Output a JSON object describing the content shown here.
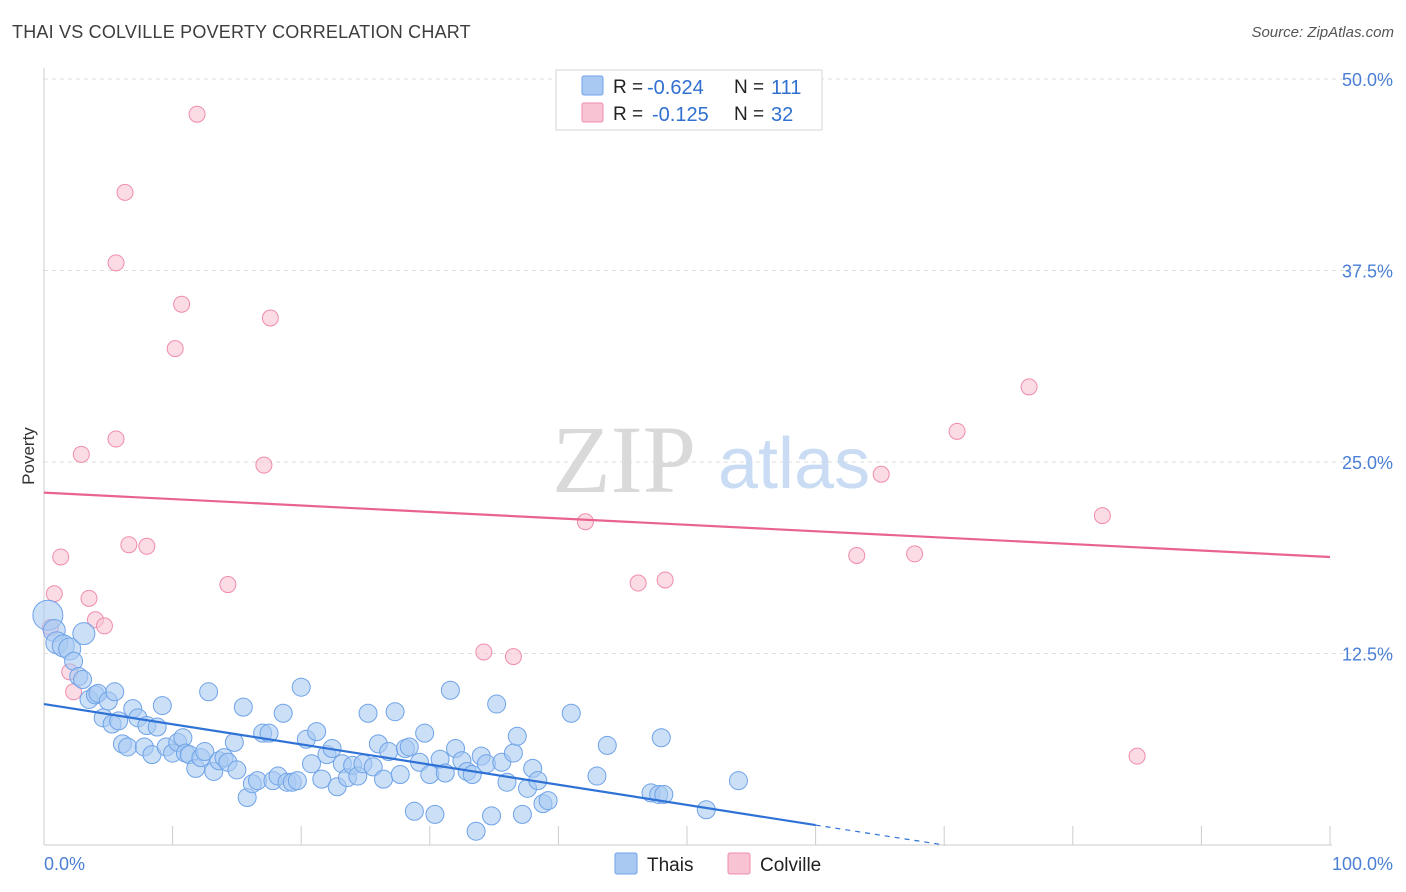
{
  "header": {
    "title": "THAI VS COLVILLE POVERTY CORRELATION CHART",
    "source": "Source: ZipAtlas.com"
  },
  "watermark": {
    "zip": "ZIP",
    "atlas": "atlas"
  },
  "legend": {
    "rows": [
      {
        "r_label": "R =",
        "r_value": "-0.624",
        "n_label": "N =",
        "n_value": "111",
        "color": "#6fa3e8"
      },
      {
        "r_label": "R =",
        "r_value": "-0.125",
        "n_label": "N =",
        "n_value": "32",
        "color": "#f08cab"
      }
    ]
  },
  "bottom_legend": {
    "series_a": "Thais",
    "series_b": "Colville"
  },
  "chart_data": {
    "type": "scatter",
    "title": "THAI VS COLVILLE POVERTY CORRELATION CHART",
    "xlabel": "",
    "ylabel": "Poverty",
    "xlim": [
      0,
      100
    ],
    "ylim": [
      0,
      50
    ],
    "x_tick_labels": [
      "0.0%",
      "100.0%"
    ],
    "y_ticks": [
      12.5,
      25.0,
      37.5,
      50.0
    ],
    "y_tick_labels": [
      "12.5%",
      "25.0%",
      "37.5%",
      "50.0%"
    ],
    "grid": true,
    "colors": {
      "thais_fill": "#a9c9f2",
      "thais_stroke": "#6fa3e8",
      "thais_line": "#2f72d6",
      "colville_fill": "#f8c4d4",
      "colville_stroke": "#f08cab",
      "colville_line": "#e8648e"
    },
    "series": [
      {
        "name": "Thais",
        "r": -0.624,
        "n": 111,
        "trend": {
          "x0": 0,
          "y0": 9.2,
          "x1": 60,
          "y1": 1.3,
          "dash_to_x": 70,
          "dash_to_y": 0.0
        },
        "points": [
          [
            0.3,
            15.0
          ],
          [
            0.8,
            14.0
          ],
          [
            1.0,
            13.2
          ],
          [
            1.5,
            13.0
          ],
          [
            2.0,
            12.8
          ],
          [
            2.3,
            12.0
          ],
          [
            2.7,
            11.0
          ],
          [
            3.0,
            10.8
          ],
          [
            3.1,
            13.8
          ],
          [
            3.5,
            9.5
          ],
          [
            4.0,
            9.8
          ],
          [
            4.2,
            9.9
          ],
          [
            4.6,
            8.3
          ],
          [
            5.0,
            9.4
          ],
          [
            5.3,
            7.9
          ],
          [
            5.5,
            10.0
          ],
          [
            5.8,
            8.1
          ],
          [
            6.1,
            6.6
          ],
          [
            6.5,
            6.4
          ],
          [
            6.9,
            8.9
          ],
          [
            7.3,
            8.3
          ],
          [
            7.8,
            6.4
          ],
          [
            8.0,
            7.8
          ],
          [
            8.4,
            5.9
          ],
          [
            8.8,
            7.7
          ],
          [
            9.2,
            9.1
          ],
          [
            9.5,
            6.4
          ],
          [
            10.0,
            6.0
          ],
          [
            10.4,
            6.7
          ],
          [
            10.8,
            7.0
          ],
          [
            11.0,
            6.0
          ],
          [
            11.3,
            5.9
          ],
          [
            11.8,
            5.0
          ],
          [
            12.2,
            5.7
          ],
          [
            12.5,
            6.1
          ],
          [
            12.8,
            10.0
          ],
          [
            13.2,
            4.8
          ],
          [
            13.6,
            5.5
          ],
          [
            14.0,
            5.7
          ],
          [
            14.3,
            5.4
          ],
          [
            14.8,
            6.7
          ],
          [
            15.0,
            4.9
          ],
          [
            15.5,
            9.0
          ],
          [
            15.8,
            3.1
          ],
          [
            16.2,
            4.0
          ],
          [
            16.6,
            4.2
          ],
          [
            17.0,
            7.3
          ],
          [
            17.5,
            7.3
          ],
          [
            17.8,
            4.2
          ],
          [
            18.2,
            4.5
          ],
          [
            18.6,
            8.6
          ],
          [
            18.9,
            4.1
          ],
          [
            19.3,
            4.1
          ],
          [
            19.7,
            4.2
          ],
          [
            20.0,
            10.3
          ],
          [
            20.4,
            6.9
          ],
          [
            20.8,
            5.3
          ],
          [
            21.2,
            7.4
          ],
          [
            21.6,
            4.3
          ],
          [
            22.0,
            5.9
          ],
          [
            22.4,
            6.3
          ],
          [
            22.8,
            3.8
          ],
          [
            23.2,
            5.3
          ],
          [
            23.6,
            4.4
          ],
          [
            24.0,
            5.2
          ],
          [
            24.4,
            4.5
          ],
          [
            24.8,
            5.3
          ],
          [
            25.2,
            8.6
          ],
          [
            25.6,
            5.1
          ],
          [
            26.0,
            6.6
          ],
          [
            26.4,
            4.3
          ],
          [
            26.8,
            6.1
          ],
          [
            27.3,
            8.7
          ],
          [
            27.7,
            4.6
          ],
          [
            28.1,
            6.3
          ],
          [
            28.4,
            6.4
          ],
          [
            28.8,
            2.2
          ],
          [
            29.2,
            5.4
          ],
          [
            29.6,
            7.3
          ],
          [
            30.0,
            4.6
          ],
          [
            30.4,
            2.0
          ],
          [
            30.8,
            5.6
          ],
          [
            31.2,
            4.7
          ],
          [
            31.6,
            10.1
          ],
          [
            32.0,
            6.3
          ],
          [
            32.5,
            5.5
          ],
          [
            32.9,
            4.8
          ],
          [
            33.3,
            4.6
          ],
          [
            33.6,
            0.9
          ],
          [
            34.0,
            5.8
          ],
          [
            34.4,
            5.3
          ],
          [
            34.8,
            1.9
          ],
          [
            35.2,
            9.2
          ],
          [
            35.6,
            5.4
          ],
          [
            36.0,
            4.1
          ],
          [
            36.5,
            6.0
          ],
          [
            36.8,
            7.1
          ],
          [
            37.2,
            2.0
          ],
          [
            37.6,
            3.7
          ],
          [
            38.0,
            5.0
          ],
          [
            38.4,
            4.2
          ],
          [
            38.8,
            2.7
          ],
          [
            39.2,
            2.9
          ],
          [
            41.0,
            8.6
          ],
          [
            43.0,
            4.5
          ],
          [
            43.8,
            6.5
          ],
          [
            47.2,
            3.4
          ],
          [
            47.8,
            3.3
          ],
          [
            48.2,
            3.3
          ],
          [
            51.5,
            2.3
          ],
          [
            54.0,
            4.2
          ],
          [
            48.0,
            7.0
          ]
        ]
      },
      {
        "name": "Colville",
        "r": -0.125,
        "n": 32,
        "trend": {
          "x0": 0,
          "y0": 23.0,
          "x1": 100,
          "y1": 18.8
        },
        "points": [
          [
            0.5,
            14.2
          ],
          [
            0.8,
            16.4
          ],
          [
            1.3,
            18.8
          ],
          [
            2.0,
            11.3
          ],
          [
            2.3,
            10.0
          ],
          [
            2.9,
            25.5
          ],
          [
            3.5,
            16.1
          ],
          [
            4.0,
            14.7
          ],
          [
            4.7,
            14.3
          ],
          [
            5.6,
            38.0
          ],
          [
            5.6,
            26.5
          ],
          [
            6.3,
            42.6
          ],
          [
            6.6,
            19.6
          ],
          [
            8.0,
            19.5
          ],
          [
            10.2,
            32.4
          ],
          [
            10.7,
            35.3
          ],
          [
            11.9,
            47.7
          ],
          [
            14.3,
            17.0
          ],
          [
            17.1,
            24.8
          ],
          [
            17.6,
            34.4
          ],
          [
            34.2,
            12.6
          ],
          [
            36.5,
            12.3
          ],
          [
            42.1,
            21.1
          ],
          [
            46.2,
            17.1
          ],
          [
            48.3,
            17.3
          ],
          [
            63.2,
            18.9
          ],
          [
            65.1,
            24.2
          ],
          [
            67.7,
            19.0
          ],
          [
            71.0,
            27.0
          ],
          [
            76.6,
            29.9
          ],
          [
            82.3,
            21.5
          ],
          [
            85.0,
            5.8
          ]
        ]
      }
    ]
  }
}
